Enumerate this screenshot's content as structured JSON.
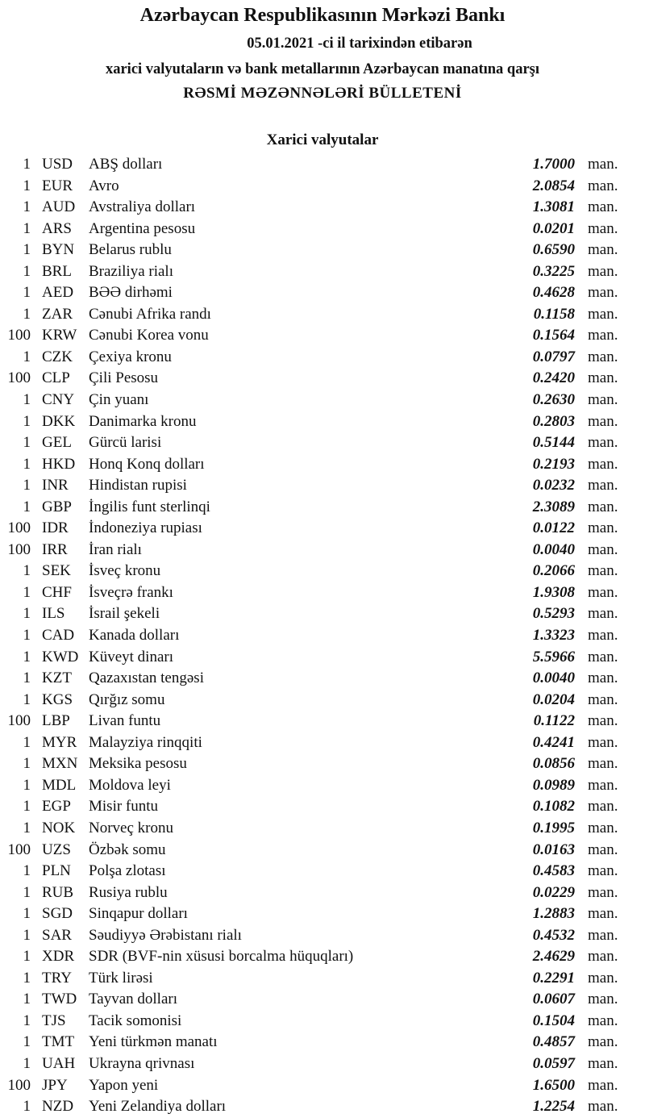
{
  "header": {
    "title": "Azərbaycan Respublikasının Mərkəzi Bankı",
    "date_line": "05.01.2021 -ci il tarixindən etibarən",
    "subtitle": "xarici valyutaların və bank metallarının Azərbaycan manatına qarşı",
    "bulletin": "RƏSMİ MƏZƏNNƏLƏRİ BÜLLETENİ"
  },
  "section_title": "Xarici valyutalar",
  "unit": "man.",
  "rates": [
    {
      "qty": "1",
      "code": "USD",
      "name": "ABŞ dolları",
      "rate": "1.7000"
    },
    {
      "qty": "1",
      "code": "EUR",
      "name": "Avro",
      "rate": "2.0854"
    },
    {
      "qty": "1",
      "code": "AUD",
      "name": "Avstraliya dolları",
      "rate": "1.3081"
    },
    {
      "qty": "1",
      "code": "ARS",
      "name": "Argentina pesosu",
      "rate": "0.0201"
    },
    {
      "qty": "1",
      "code": "BYN",
      "name": "Belarus rublu",
      "rate": "0.6590"
    },
    {
      "qty": "1",
      "code": "BRL",
      "name": "Braziliya rialı",
      "rate": "0.3225"
    },
    {
      "qty": "1",
      "code": "AED",
      "name": "BƏƏ dirhəmi",
      "rate": "0.4628"
    },
    {
      "qty": "1",
      "code": "ZAR",
      "name": "Cənubi Afrika randı",
      "rate": "0.1158"
    },
    {
      "qty": "100",
      "code": "KRW",
      "name": "Cənubi Korea vonu",
      "rate": "0.1564"
    },
    {
      "qty": "1",
      "code": "CZK",
      "name": "Çexiya kronu",
      "rate": "0.0797"
    },
    {
      "qty": "100",
      "code": "CLP",
      "name": "Çili Pesosu",
      "rate": "0.2420"
    },
    {
      "qty": "1",
      "code": "CNY",
      "name": "Çin yuanı",
      "rate": "0.2630"
    },
    {
      "qty": "1",
      "code": "DKK",
      "name": "Danimarka kronu",
      "rate": "0.2803"
    },
    {
      "qty": "1",
      "code": "GEL",
      "name": "Gürcü larisi",
      "rate": "0.5144"
    },
    {
      "qty": "1",
      "code": "HKD",
      "name": "Honq Konq dolları",
      "rate": "0.2193"
    },
    {
      "qty": "1",
      "code": "INR",
      "name": "Hindistan rupisi",
      "rate": "0.0232"
    },
    {
      "qty": "1",
      "code": "GBP",
      "name": "İngilis funt sterlinqi",
      "rate": "2.3089"
    },
    {
      "qty": "100",
      "code": "IDR",
      "name": "İndoneziya rupiası",
      "rate": "0.0122"
    },
    {
      "qty": "100",
      "code": "IRR",
      "name": "İran rialı",
      "rate": "0.0040"
    },
    {
      "qty": "1",
      "code": "SEK",
      "name": "İsveç kronu",
      "rate": "0.2066"
    },
    {
      "qty": "1",
      "code": "CHF",
      "name": "İsveçrə frankı",
      "rate": "1.9308"
    },
    {
      "qty": "1",
      "code": "ILS",
      "name": "İsrail şekeli",
      "rate": "0.5293"
    },
    {
      "qty": "1",
      "code": "CAD",
      "name": "Kanada dolları",
      "rate": "1.3323"
    },
    {
      "qty": "1",
      "code": "KWD",
      "name": "Küveyt dinarı",
      "rate": "5.5966"
    },
    {
      "qty": "1",
      "code": "KZT",
      "name": "Qazaxıstan tengəsi",
      "rate": "0.0040"
    },
    {
      "qty": "1",
      "code": "KGS",
      "name": "Qırğız somu",
      "rate": "0.0204"
    },
    {
      "qty": "100",
      "code": "LBP",
      "name": "Livan funtu",
      "rate": "0.1122"
    },
    {
      "qty": "1",
      "code": "MYR",
      "name": "Malayziya rinqqiti",
      "rate": "0.4241"
    },
    {
      "qty": "1",
      "code": "MXN",
      "name": "Meksika pesosu",
      "rate": "0.0856"
    },
    {
      "qty": "1",
      "code": "MDL",
      "name": "Moldova leyi",
      "rate": "0.0989"
    },
    {
      "qty": "1",
      "code": "EGP",
      "name": "Misir funtu",
      "rate": "0.1082"
    },
    {
      "qty": "1",
      "code": "NOK",
      "name": "Norveç kronu",
      "rate": "0.1995"
    },
    {
      "qty": "100",
      "code": "UZS",
      "name": "Özbək somu",
      "rate": "0.0163"
    },
    {
      "qty": "1",
      "code": "PLN",
      "name": "Polşa zlotası",
      "rate": "0.4583"
    },
    {
      "qty": "1",
      "code": "RUB",
      "name": "Rusiya rublu",
      "rate": "0.0229"
    },
    {
      "qty": "1",
      "code": "SGD",
      "name": "Sinqapur dolları",
      "rate": "1.2883"
    },
    {
      "qty": "1",
      "code": "SAR",
      "name": "Səudiyyə Ərəbistanı rialı",
      "rate": "0.4532"
    },
    {
      "qty": "1",
      "code": "XDR",
      "name": "SDR (BVF-nin xüsusi borcalma hüquqları)",
      "rate": "2.4629"
    },
    {
      "qty": "1",
      "code": "TRY",
      "name": "Türk lirəsi",
      "rate": "0.2291"
    },
    {
      "qty": "1",
      "code": "TWD",
      "name": "Tayvan dolları",
      "rate": "0.0607"
    },
    {
      "qty": "1",
      "code": "TJS",
      "name": "Tacik somonisi",
      "rate": "0.1504"
    },
    {
      "qty": "1",
      "code": "TMT",
      "name": "Yeni türkmən manatı",
      "rate": "0.4857"
    },
    {
      "qty": "1",
      "code": "UAH",
      "name": "Ukrayna qrivnası",
      "rate": "0.0597"
    },
    {
      "qty": "100",
      "code": "JPY",
      "name": "Yapon yeni",
      "rate": "1.6500"
    },
    {
      "qty": "1",
      "code": "NZD",
      "name": "Yeni Zelandiya dolları",
      "rate": "1.2254"
    }
  ]
}
